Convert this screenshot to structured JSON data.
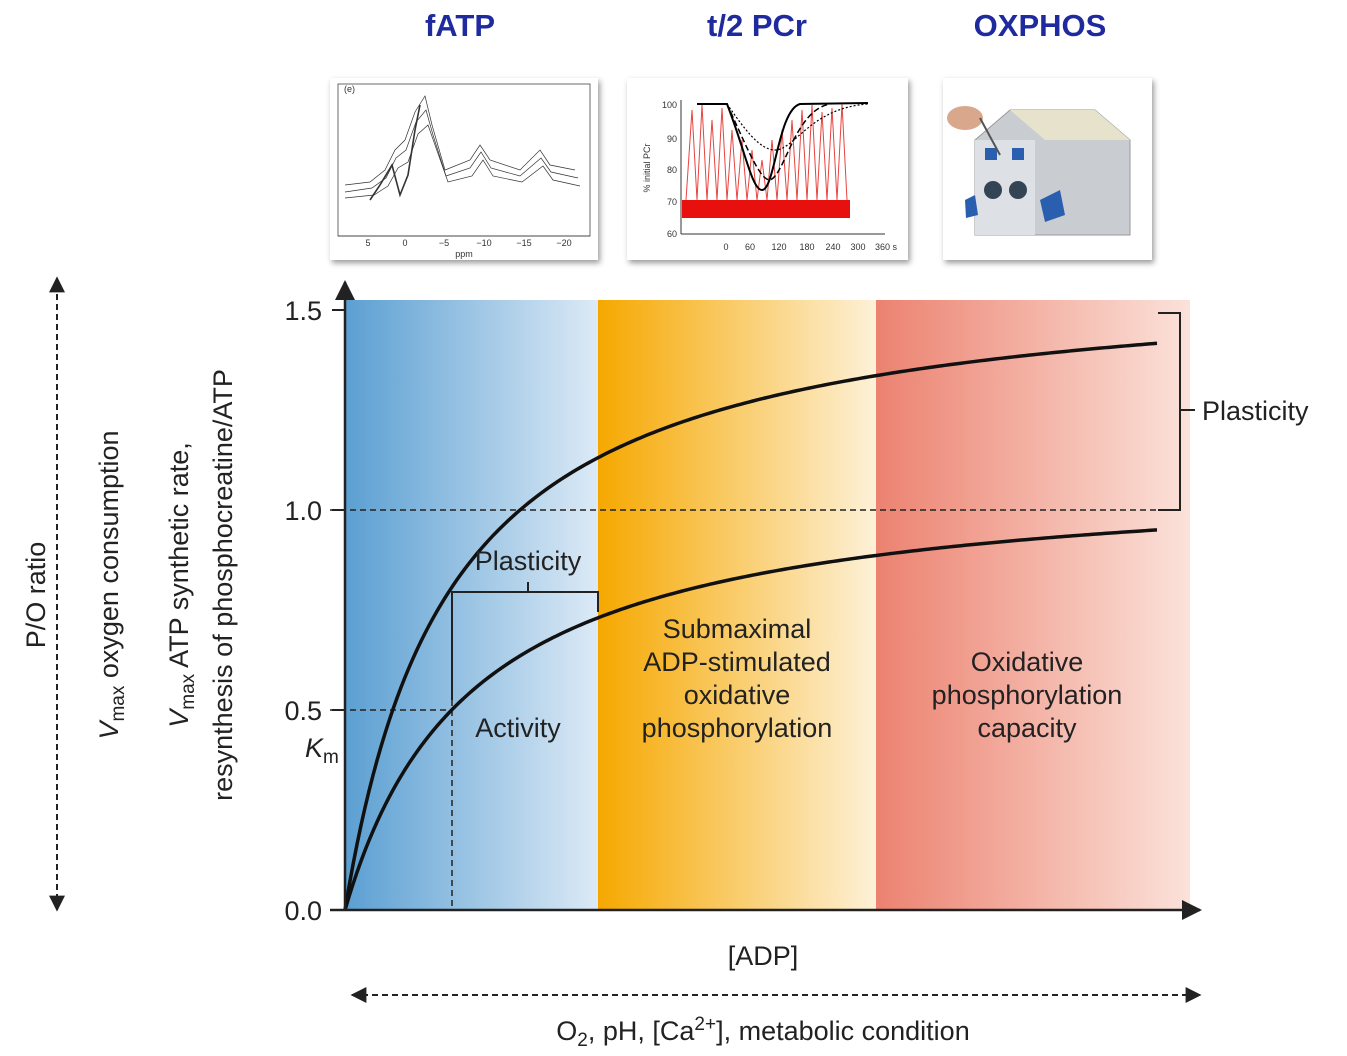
{
  "header": {
    "items": [
      "fATP",
      "t/2 PCr",
      "OXPHOS"
    ]
  },
  "inset_fatp": {
    "label": "(e)",
    "xticks": [
      "5",
      "0",
      "−5",
      "−10",
      "−15",
      "−20"
    ],
    "xlabel": "ppm"
  },
  "inset_pcr": {
    "ylabel": "% initial PCr",
    "yticks": [
      "100",
      "90",
      "80",
      "70",
      "60"
    ],
    "xticks": [
      "0",
      "60",
      "120",
      "180",
      "240",
      "300",
      "360 s"
    ]
  },
  "left_axis": {
    "po": "P/O ratio",
    "vo2": [
      "V",
      "max",
      " oxygen consumption"
    ],
    "atp1": [
      "V",
      "max",
      " ATP synthetic rate,"
    ],
    "atp2": "resynthesis of phosphocreatine/ATP"
  },
  "y_ticks": [
    "0.0",
    "0.5",
    "1.0",
    "1.5"
  ],
  "km": [
    "K",
    "m"
  ],
  "labels": {
    "plasticity_right": "Plasticity",
    "plasticity_left": "Plasticity",
    "activity": "Activity",
    "submax": [
      "Submaximal",
      "ADP-stimulated",
      "oxidative",
      "phosphorylation"
    ],
    "capacity": [
      "Oxidative",
      "phosphorylation",
      "capacity"
    ]
  },
  "x_axis": "[ADP]",
  "bottom": [
    "O",
    "2",
    ", pH, [Ca",
    "2+",
    "], metabolic condition"
  ]
}
